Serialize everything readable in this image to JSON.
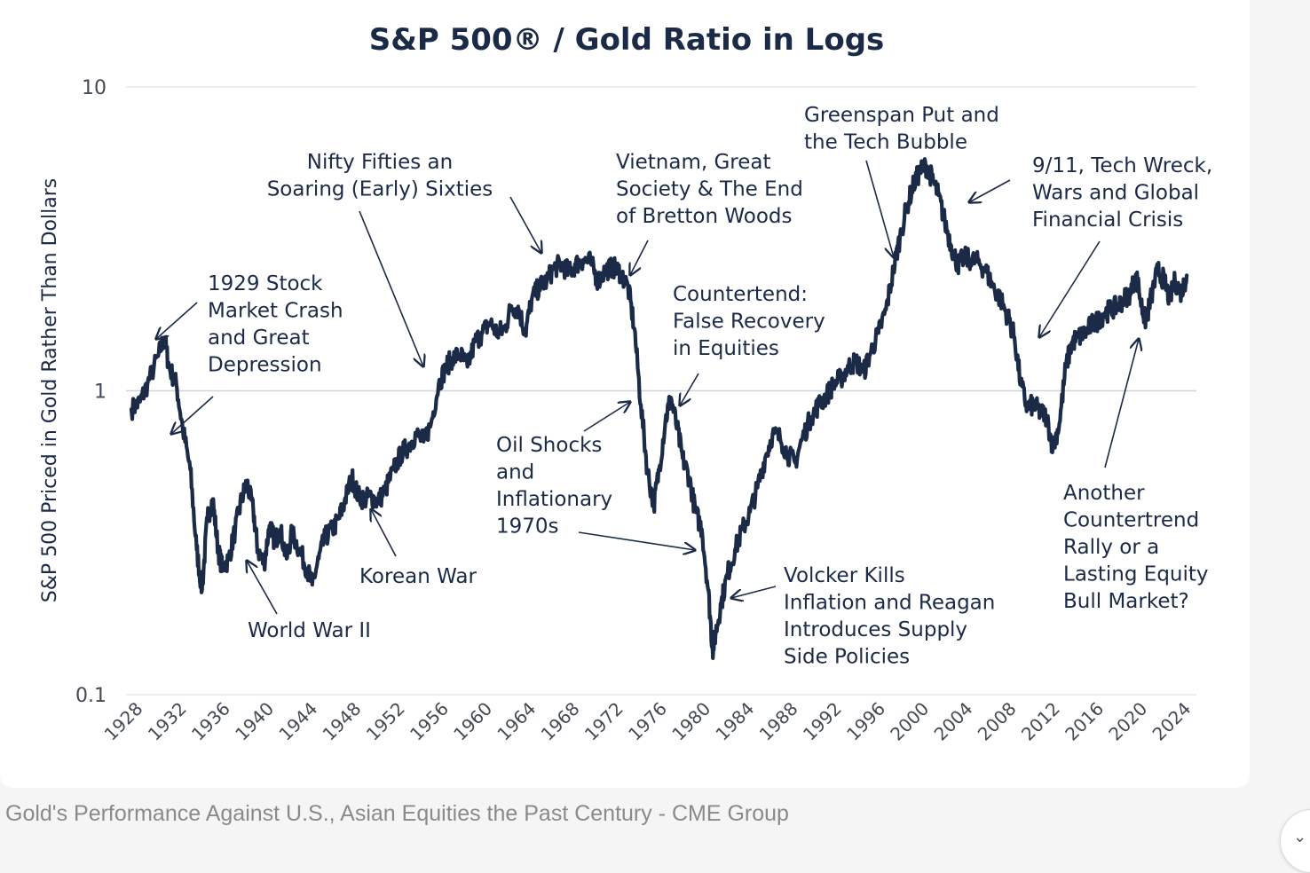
{
  "chart_data": {
    "type": "line",
    "title": "S&P 500® / Gold Ratio in Logs",
    "ylabel": "S&P 500 Priced in Gold Rather Than Dollars",
    "xlabel": "",
    "yscale": "log",
    "ylim": [
      0.1,
      10
    ],
    "yticks": [
      {
        "value": 0.1,
        "label": "0.1"
      },
      {
        "value": 1,
        "label": "1"
      },
      {
        "value": 10,
        "label": "10"
      }
    ],
    "xlim": [
      1925,
      2025
    ],
    "xticks": [
      "1928",
      "1932",
      "1936",
      "1940",
      "1944",
      "1948",
      "1952",
      "1956",
      "1960",
      "1964",
      "1968",
      "1972",
      "1976",
      "1980",
      "1984",
      "1988",
      "1992",
      "1996",
      "2000",
      "2004",
      "2008",
      "2012",
      "2016",
      "2020",
      "2024"
    ],
    "series": [
      {
        "name": "S&P 500 / Gold",
        "color": "#1b2a47",
        "x": [
          1925.5,
          1926.3,
          1927.0,
          1928.0,
          1928.6,
          1929.0,
          1929.7,
          1930.3,
          1931.0,
          1931.6,
          1932.1,
          1932.6,
          1933.1,
          1933.6,
          1934.0,
          1934.6,
          1935.2,
          1935.8,
          1936.3,
          1936.9,
          1937.3,
          1937.9,
          1938.4,
          1938.9,
          1939.4,
          1940.0,
          1940.5,
          1941.2,
          1941.9,
          1942.4,
          1943.0,
          1943.6,
          1944.3,
          1944.9,
          1945.4,
          1946.1,
          1946.7,
          1947.3,
          1947.9,
          1948.5,
          1949.2,
          1950.0,
          1950.7,
          1951.4,
          1952.1,
          1952.8,
          1953.5,
          1954.2,
          1954.9,
          1955.5,
          1956.2,
          1956.9,
          1957.6,
          1958.3,
          1959.0,
          1959.7,
          1960.4,
          1961.0,
          1961.7,
          1962.3,
          1962.9,
          1963.6,
          1964.3,
          1965.0,
          1965.7,
          1966.4,
          1967.0,
          1967.7,
          1968.4,
          1969.1,
          1969.8,
          1970.5,
          1971.2,
          1971.9,
          1972.5,
          1973.1,
          1973.7,
          1974.3,
          1974.8,
          1975.4,
          1975.9,
          1976.5,
          1977.0,
          1977.6,
          1978.2,
          1978.8,
          1979.4,
          1979.8,
          1980.1,
          1980.6,
          1981.2,
          1981.9,
          1982.6,
          1983.3,
          1984.0,
          1984.7,
          1985.4,
          1986.1,
          1986.8,
          1987.5,
          1988.2,
          1989.0,
          1989.7,
          1990.4,
          1991.1,
          1991.8,
          1992.5,
          1993.2,
          1993.9,
          1994.6,
          1995.3,
          1996.0,
          1996.7,
          1997.3,
          1998.0,
          1998.6,
          1999.2,
          1999.8,
          2000.3,
          2000.9,
          2001.5,
          2002.1,
          2002.7,
          2003.3,
          2003.9,
          2004.6,
          2005.3,
          2006.0,
          2006.7,
          2007.4,
          2008.0,
          2008.6,
          2009.2,
          2009.8,
          2010.4,
          2011.0,
          2011.6,
          2012.2,
          2012.8,
          2013.4,
          2014.0,
          2014.6,
          2015.2,
          2015.8,
          2016.4,
          2017.0,
          2017.6,
          2018.2,
          2018.8,
          2019.4,
          2020.0,
          2020.3,
          2020.8,
          2021.4,
          2022.0,
          2022.5,
          2023.0,
          2023.6,
          2024.1
        ],
        "y": [
          0.87,
          0.92,
          1.05,
          1.3,
          1.5,
          1.2,
          1.05,
          0.75,
          0.55,
          0.3,
          0.22,
          0.38,
          0.44,
          0.3,
          0.26,
          0.28,
          0.35,
          0.44,
          0.5,
          0.4,
          0.3,
          0.27,
          0.36,
          0.32,
          0.35,
          0.28,
          0.34,
          0.3,
          0.26,
          0.23,
          0.28,
          0.33,
          0.35,
          0.38,
          0.43,
          0.52,
          0.45,
          0.44,
          0.45,
          0.43,
          0.47,
          0.55,
          0.62,
          0.66,
          0.72,
          0.68,
          0.78,
          1.05,
          1.2,
          1.28,
          1.32,
          1.2,
          1.45,
          1.55,
          1.68,
          1.55,
          1.6,
          1.9,
          1.85,
          1.55,
          2.0,
          2.2,
          2.3,
          2.55,
          2.6,
          2.45,
          2.6,
          2.7,
          2.65,
          2.3,
          2.5,
          2.55,
          2.45,
          2.2,
          1.6,
          0.9,
          0.55,
          0.42,
          0.55,
          0.8,
          0.95,
          0.75,
          0.6,
          0.52,
          0.4,
          0.35,
          0.22,
          0.14,
          0.16,
          0.2,
          0.25,
          0.3,
          0.35,
          0.4,
          0.48,
          0.6,
          0.72,
          0.7,
          0.62,
          0.58,
          0.7,
          0.82,
          0.9,
          0.96,
          1.05,
          1.1,
          1.2,
          1.25,
          1.15,
          1.35,
          1.55,
          1.85,
          2.5,
          3.2,
          4.1,
          4.8,
          5.3,
          5.5,
          5.0,
          4.4,
          3.6,
          3.0,
          2.6,
          2.75,
          2.7,
          2.65,
          2.5,
          2.2,
          2.0,
          1.75,
          1.5,
          1.05,
          0.88,
          0.9,
          0.85,
          0.82,
          0.65,
          0.78,
          1.2,
          1.45,
          1.5,
          1.55,
          1.65,
          1.7,
          1.8,
          1.85,
          1.9,
          2.0,
          2.1,
          2.4,
          1.8,
          1.7,
          2.05,
          2.5,
          2.3,
          2.0,
          2.3,
          2.1,
          2.4
        ]
      }
    ],
    "annotations": [
      {
        "id": "crash",
        "lines": [
          "1929 Stock",
          "Market Crash",
          "and Great",
          "Depression"
        ]
      },
      {
        "id": "ww2",
        "lines": [
          "World War II"
        ]
      },
      {
        "id": "korea",
        "lines": [
          "Korean War"
        ]
      },
      {
        "id": "nifty",
        "lines": [
          "Nifty Fifties an",
          "Soaring (Early) Sixties"
        ]
      },
      {
        "id": "vietnam",
        "lines": [
          "Vietnam, Great",
          "Society & The End",
          "of Bretton Woods"
        ]
      },
      {
        "id": "oil",
        "lines": [
          "Oil Shocks",
          "and",
          "Inflationary",
          "1970s"
        ]
      },
      {
        "id": "counter",
        "lines": [
          "Countertend:",
          "False Recovery",
          "in Equities"
        ]
      },
      {
        "id": "volcker",
        "lines": [
          "Volcker Kills",
          "Inflation and Reagan",
          "Introduces Supply",
          "Side Policies"
        ]
      },
      {
        "id": "greenspan",
        "lines": [
          "Greenspan Put and",
          "the Tech Bubble"
        ]
      },
      {
        "id": "nineeleven",
        "lines": [
          "9/11, Tech Wreck,",
          "Wars and Global",
          "Financial Crisis"
        ]
      },
      {
        "id": "another",
        "lines": [
          "Another",
          "Countertrend",
          "Rally or a",
          "Lasting Equity",
          "Bull Market?"
        ]
      }
    ]
  },
  "caption": "Gold's Performance Against U.S., Asian Equities the Past Century - CME Group",
  "colors": {
    "line": "#1b2a47",
    "grid": "#e6e8ee",
    "text": "#1b2a47",
    "tick": "#444a55"
  }
}
